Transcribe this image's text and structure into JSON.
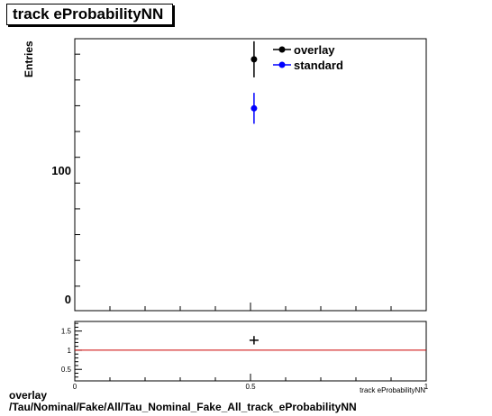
{
  "title": "track eProbabilityNN",
  "caption_line1": "overlay",
  "caption_line2": "/Tau/Nominal/Fake/All/Tau_Nominal_Fake_All_track_eProbabilityNN",
  "colors": {
    "overlay": "#000000",
    "standard": "#0000ff",
    "ratio_line": "#cc0000"
  },
  "chart_data": [
    {
      "type": "scatter",
      "ylabel": "Entries",
      "xlim": [
        0,
        1
      ],
      "ylim": [
        -9,
        202
      ],
      "yticks": [
        0,
        100
      ],
      "ytick_labels": [
        "0",
        "100"
      ],
      "legend_position": "top-right",
      "series": [
        {
          "name": "overlay",
          "x": [
            0.51
          ],
          "y": [
            186
          ],
          "yerr": [
            14
          ]
        },
        {
          "name": "standard",
          "x": [
            0.51
          ],
          "y": [
            148
          ],
          "yerr": [
            12
          ]
        }
      ]
    },
    {
      "type": "scatter",
      "xlabel": "track eProbabilityNN",
      "xlim": [
        0,
        1
      ],
      "ylim": [
        0.2,
        1.75
      ],
      "xticks": [
        0,
        0.5,
        1
      ],
      "xtick_labels": [
        "0",
        "0.5",
        "1"
      ],
      "yticks": [
        0.5,
        1,
        1.5
      ],
      "ytick_labels": [
        "0.5",
        "1",
        "1.5"
      ],
      "reference_line": 1,
      "series": [
        {
          "x": [
            0.51
          ],
          "y": [
            1.26
          ],
          "yerr": [
            0.11
          ]
        }
      ]
    }
  ]
}
